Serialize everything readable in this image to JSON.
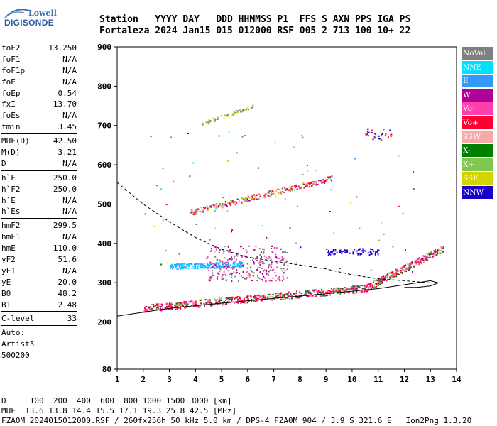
{
  "logo": {
    "line1": "Lowell",
    "line2": "DIGISONDE"
  },
  "header": {
    "row1": "Station   YYYY DAY   DDD HHMMSS P1  FFS S AXN PPS IGA PS",
    "row2": "Fortaleza 2024 Jan15 015 012000 RSF 005 2 713 100 10+ 22"
  },
  "params": {
    "group1": [
      {
        "label": "foF2",
        "value": "13.250"
      },
      {
        "label": "foF1",
        "value": "N/A"
      },
      {
        "label": "foF1p",
        "value": "N/A"
      },
      {
        "label": "foE",
        "value": "N/A"
      },
      {
        "label": "foEp",
        "value": "0.54"
      },
      {
        "label": "fxI",
        "value": "13.70"
      },
      {
        "label": "foEs",
        "value": "N/A"
      },
      {
        "label": "fmin",
        "value": "3.45"
      }
    ],
    "group2": [
      {
        "label": "MUF(D)",
        "value": "42.50"
      },
      {
        "label": "M(D)",
        "value": "3.21"
      },
      {
        "label": "D",
        "value": "N/A"
      }
    ],
    "group3": [
      {
        "label": "h`F",
        "value": "250.0"
      },
      {
        "label": "h`F2",
        "value": "250.0"
      },
      {
        "label": "h`E",
        "value": "N/A"
      },
      {
        "label": "h`Es",
        "value": "N/A"
      }
    ],
    "group4": [
      {
        "label": "hmF2",
        "value": "299.5"
      },
      {
        "label": "hmF1",
        "value": "N/A"
      },
      {
        "label": "hmE",
        "value": "110.0"
      },
      {
        "label": "yF2",
        "value": "51.6"
      },
      {
        "label": "yF1",
        "value": "N/A"
      },
      {
        "label": "yE",
        "value": "20.0"
      },
      {
        "label": "B0",
        "value": "48.2"
      },
      {
        "label": "B1",
        "value": "2.48"
      }
    ],
    "group5": [
      {
        "label": "C-level",
        "value": "33"
      }
    ],
    "autoscale": [
      "Auto:",
      "Artist5",
      "500200"
    ]
  },
  "legend": [
    {
      "label": "NoVal",
      "color": "#808080"
    },
    {
      "label": "NNE",
      "color": "#00e0ff"
    },
    {
      "label": "E",
      "color": "#3399ff"
    },
    {
      "label": "W",
      "color": "#b0009a"
    },
    {
      "label": "Vo-",
      "color": "#ff3fae"
    },
    {
      "label": "Vo+",
      "color": "#ff0033"
    },
    {
      "label": "SSW",
      "color": "#f7a8a8"
    },
    {
      "label": "X-",
      "color": "#008000"
    },
    {
      "label": "X+",
      "color": "#80c850"
    },
    {
      "label": "SSE",
      "color": "#d4d400"
    },
    {
      "label": "NNW",
      "color": "#1a00cc"
    }
  ],
  "chart_data": {
    "type": "scatter",
    "xlim": [
      1,
      14
    ],
    "ylim": [
      80,
      900
    ],
    "x_ticks": [
      1,
      2,
      3,
      4,
      5,
      6,
      7,
      8,
      9,
      10,
      11,
      12,
      13,
      14
    ],
    "y_ticks": [
      80,
      200,
      300,
      400,
      500,
      600,
      700,
      800,
      900
    ],
    "profile_solid": [
      [
        1,
        215
      ],
      [
        3,
        235
      ],
      [
        5,
        248
      ],
      [
        7,
        260
      ],
      [
        9,
        272
      ],
      [
        11,
        285
      ],
      [
        12,
        295
      ],
      [
        13,
        305
      ],
      [
        13.3,
        299.5
      ],
      [
        13,
        292
      ],
      [
        12.5,
        288
      ],
      [
        12,
        288
      ]
    ],
    "profile_dashed": [
      [
        1,
        555
      ],
      [
        2,
        500
      ],
      [
        3,
        455
      ],
      [
        4,
        415
      ],
      [
        5,
        385
      ],
      [
        6,
        365
      ],
      [
        7,
        355
      ],
      [
        8,
        345
      ],
      [
        9,
        335
      ],
      [
        10,
        320
      ],
      [
        11,
        310
      ],
      [
        12,
        305
      ],
      [
        13,
        299.5
      ]
    ]
  },
  "footer": {
    "row1": "D     100  200  400  600  800 1000 1500 3000 [km]",
    "row2": "MUF  13.6 13.8 14.4 15.5 17.1 19.3 25.8 42.5 [MHz]",
    "row3": "FZA0M_2024015012000.RSF / 260fx256h 50 kHz 5.0 km / DPS-4 FZA0M 904 / 3.9 S 321.6 E   Ion2Png 1.3.20"
  }
}
